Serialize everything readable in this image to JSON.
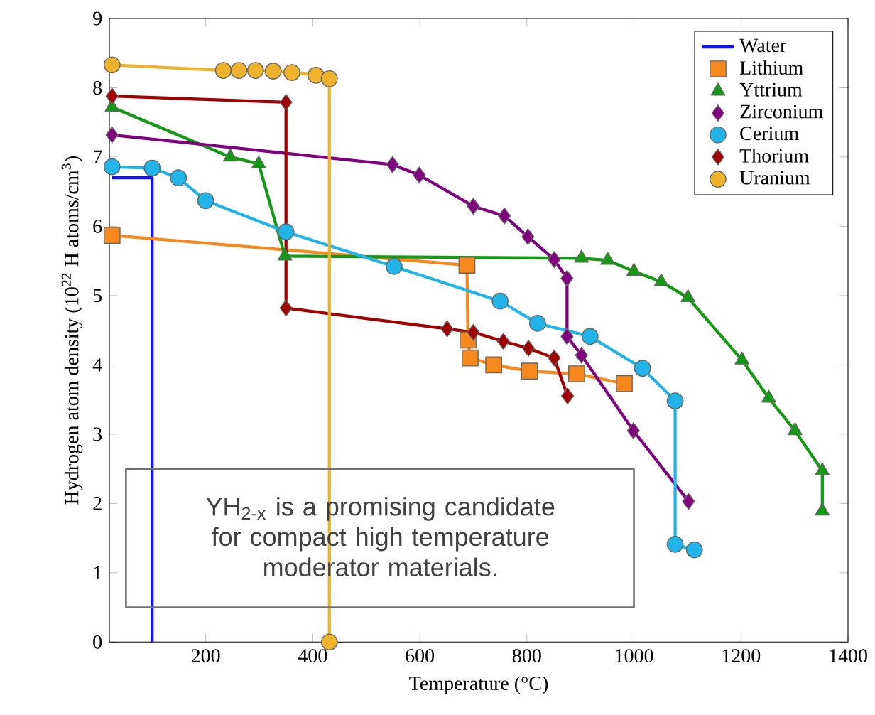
{
  "chart_data": {
    "type": "line",
    "xlabel": "Temperature (°C)",
    "ylabel": "Hydrogen atom density (10$^{22}$ H atoms/cm$^{3}$)",
    "xlim": [
      20,
      1400
    ],
    "ylim": [
      0,
      9
    ],
    "xticks": [
      200,
      400,
      600,
      800,
      1000,
      1200,
      1400
    ],
    "yticks": [
      0,
      1,
      2,
      3,
      4,
      5,
      6,
      7,
      8,
      9
    ],
    "legend": "top right",
    "annotations": [
      "YH$_{2-x}$ is a promising candidate for compact high temperature moderator materials."
    ],
    "series": [
      {
        "name": "Water",
        "color": "#1414e6",
        "marker": "none",
        "x": [
          25,
          100,
          100
        ],
        "values": [
          6.7,
          6.7,
          0
        ]
      },
      {
        "name": "Lithium",
        "color": "#f5891e",
        "marker": "square",
        "x": [
          25,
          688,
          690,
          694,
          738,
          805,
          893,
          982
        ],
        "values": [
          5.87,
          5.44,
          4.36,
          4.1,
          4.0,
          3.91,
          3.87,
          3.73
        ]
      },
      {
        "name": "Yttrium",
        "color": "#139913",
        "marker": "triangle",
        "x": [
          25,
          246,
          299,
          348,
          902,
          951,
          1000,
          1051,
          1101,
          1202,
          1252,
          1301,
          1352,
          1352
        ],
        "values": [
          7.72,
          7.0,
          6.9,
          5.57,
          5.54,
          5.51,
          5.35,
          5.2,
          4.97,
          4.07,
          3.52,
          3.05,
          2.47,
          1.89
        ]
      },
      {
        "name": "Zirconium",
        "color": "#800080",
        "marker": "diamond",
        "x": [
          25,
          549,
          599,
          700,
          758,
          802,
          851,
          875,
          875,
          902,
          999,
          1102
        ],
        "values": [
          7.32,
          6.89,
          6.74,
          6.29,
          6.15,
          5.85,
          5.52,
          5.25,
          4.41,
          4.14,
          3.05,
          2.03
        ]
      },
      {
        "name": "Cerium",
        "color": "#22b4e8",
        "marker": "circle",
        "x": [
          25,
          100,
          149,
          200,
          350,
          552,
          750,
          820,
          918,
          1016,
          1077,
          1077,
          1113
        ],
        "values": [
          6.86,
          6.84,
          6.7,
          6.37,
          5.92,
          5.42,
          4.92,
          4.6,
          4.41,
          3.95,
          3.48,
          1.41,
          1.33
        ]
      },
      {
        "name": "Thorium",
        "color": "#a00000",
        "marker": "diamond",
        "x": [
          25,
          350,
          350,
          651,
          700,
          756,
          803,
          851,
          876
        ],
        "values": [
          7.88,
          7.79,
          4.82,
          4.52,
          4.47,
          4.34,
          4.24,
          4.1,
          3.55
        ]
      },
      {
        "name": "Uranium",
        "color": "#efb22c",
        "marker": "circle",
        "x": [
          25,
          233,
          262,
          293,
          326,
          361,
          406,
          431,
          431
        ],
        "values": [
          8.33,
          8.25,
          8.25,
          8.25,
          8.24,
          8.22,
          8.18,
          8.13,
          0
        ]
      }
    ]
  }
}
